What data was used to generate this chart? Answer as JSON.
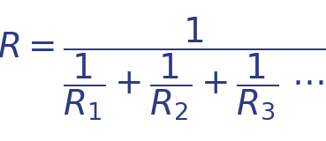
{
  "background_color": "#ffffff",
  "text_color": "#2e3a87",
  "figsize": [
    3.69,
    1.6
  ],
  "dpi": 100,
  "formula_fontsize": 28,
  "sub_fontsize": 22,
  "italic_font": "DejaVu Serif",
  "lhs": "R =",
  "numerator": "1",
  "frac1_num": "1",
  "frac1_den": "R",
  "frac1_sub": "1",
  "frac2_num": "1",
  "frac2_den": "R",
  "frac2_sub": "2",
  "frac3_num": "1",
  "frac3_den": "R",
  "frac3_sub": "3",
  "plus": "+",
  "dots": "..."
}
